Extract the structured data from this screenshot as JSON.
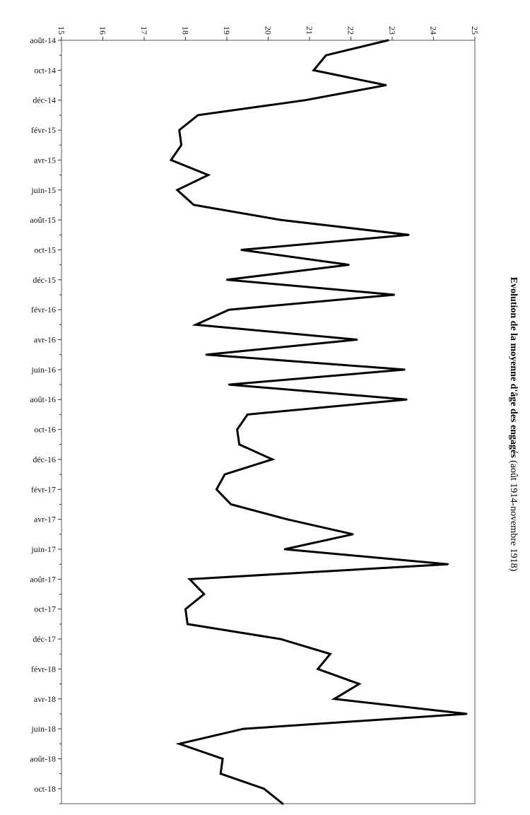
{
  "chart_data": {
    "type": "line",
    "title_bold": "Evolution de la moyenne d'âge des engagés",
    "title_rest": " (août 1914-novembre 1918)",
    "value_axis": {
      "min": 15,
      "max": 25,
      "ticks": [
        15,
        16,
        17,
        18,
        19,
        20,
        21,
        22,
        23,
        24,
        25
      ]
    },
    "category_labels": [
      "août-14",
      "oct-14",
      "déc-14",
      "févr-15",
      "avr-15",
      "juin-15",
      "août-15",
      "oct-15",
      "déc-15",
      "févr-16",
      "avr-16",
      "juin-16",
      "août-16",
      "oct-16",
      "déc-16",
      "févr-17",
      "avr-17",
      "juin-17",
      "août-17",
      "oct-17",
      "déc-17",
      "févr-18",
      "avr-18",
      "juin-18",
      "août-18",
      "oct-18"
    ],
    "x": [
      "août-14",
      "sept-14",
      "oct-14",
      "nov-14",
      "déc-14",
      "janv-15",
      "févr-15",
      "mars-15",
      "avr-15",
      "mai-15",
      "juin-15",
      "juil-15",
      "août-15",
      "sept-15",
      "oct-15",
      "nov-15",
      "déc-15",
      "janv-16",
      "févr-16",
      "mars-16",
      "avr-16",
      "mai-16",
      "juin-16",
      "juil-16",
      "août-16",
      "sept-16",
      "oct-16",
      "nov-16",
      "déc-16",
      "janv-17",
      "févr-17",
      "mars-17",
      "avr-17",
      "mai-17",
      "juin-17",
      "juil-17",
      "août-17",
      "sept-17",
      "oct-17",
      "nov-17",
      "déc-17",
      "janv-18",
      "févr-18",
      "mars-18",
      "avr-18",
      "mai-18",
      "juin-18",
      "juil-18",
      "août-18",
      "sept-18",
      "oct-18",
      "nov-18"
    ],
    "values": [
      22.9,
      21.4,
      21.1,
      22.85,
      20.9,
      18.3,
      17.85,
      17.9,
      17.65,
      18.55,
      17.8,
      18.2,
      20.3,
      23.4,
      19.35,
      21.95,
      19.0,
      23.05,
      19.05,
      18.25,
      22.15,
      18.5,
      23.3,
      19.05,
      23.35,
      19.5,
      19.25,
      19.3,
      20.1,
      18.95,
      18.75,
      19.1,
      20.45,
      22.05,
      20.4,
      24.35,
      18.1,
      18.45,
      18.0,
      18.05,
      20.3,
      21.5,
      21.2,
      22.2,
      21.6,
      24.8,
      19.4,
      17.85,
      18.9,
      18.85,
      19.9,
      20.35
    ],
    "grid": false,
    "legend": "none",
    "orientation": "rotated 90° (value axis across the top, time running downward)"
  }
}
